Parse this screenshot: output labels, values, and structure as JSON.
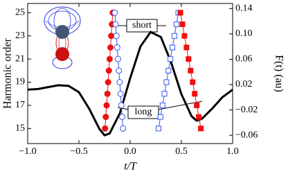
{
  "chart_data": {
    "type": "line",
    "xlabel": "t/T",
    "ylabel": "Harmonic order",
    "y2label": "F(t) (au)",
    "xlim": [
      -1.0,
      1.0
    ],
    "xticks": [
      {
        "value": -1.0,
        "label": "−1.0"
      },
      {
        "value": -0.5,
        "label": "−0.5"
      },
      {
        "value": 0.0,
        "label": "0.0"
      },
      0.5,
      {
        "value": 1.0,
        "label": "1.0"
      }
    ],
    "ylim": [
      13.7,
      25.8
    ],
    "yticks": [
      15,
      17,
      19,
      21,
      23,
      25
    ],
    "y2lim": [
      -0.073,
      0.148
    ],
    "y2ticks": [
      {
        "value": -0.06,
        "label": "−0.06"
      },
      {
        "value": -0.02,
        "label": "−0.02"
      },
      0.02,
      0.06,
      {
        "value": 0.1,
        "label": "0.10"
      },
      0.14
    ],
    "annotations": [
      "short",
      "long"
    ],
    "series": [
      {
        "color": "#000000",
        "marker": "none",
        "axis": "y2",
        "x": [
          -1.0,
          -0.9,
          -0.8,
          -0.7,
          -0.6,
          -0.5,
          -0.4,
          -0.3,
          -0.25,
          -0.2,
          -0.1,
          0.0,
          0.1,
          0.2,
          0.3,
          0.4,
          0.5,
          0.6,
          0.65,
          0.7,
          0.8,
          0.9,
          1.0
        ],
        "values": [
          0.012,
          0.013,
          0.016,
          0.019,
          0.018,
          0.008,
          -0.018,
          -0.05,
          -0.06,
          -0.057,
          -0.025,
          0.03,
          0.08,
          0.103,
          0.095,
          0.055,
          0.005,
          -0.03,
          -0.037,
          -0.034,
          -0.018,
          0.0,
          0.012
        ]
      },
      {
        "color": "#ee1111",
        "marker": "circle",
        "filled": true,
        "x": [
          -0.245,
          -0.238,
          -0.23,
          -0.222,
          -0.215,
          -0.208,
          -0.2,
          -0.192,
          -0.185,
          -0.178,
          -0.17
        ],
        "values": [
          15,
          16,
          17,
          18,
          19,
          20,
          21,
          22,
          23,
          24,
          25
        ]
      },
      {
        "color": "#3355ee",
        "marker": "circle",
        "filled": false,
        "x": [
          -0.07,
          -0.078,
          -0.086,
          -0.094,
          -0.102,
          -0.11,
          -0.118,
          -0.126,
          -0.134,
          -0.142,
          -0.15
        ],
        "values": [
          15,
          16,
          17,
          18,
          19,
          20,
          21,
          22,
          23,
          24,
          25
        ]
      },
      {
        "color": "#3355ee",
        "marker": "square",
        "filled": false,
        "x": [
          0.277,
          0.296,
          0.316,
          0.335,
          0.354,
          0.374,
          0.393,
          0.412,
          0.432,
          0.451,
          0.47
        ],
        "values": [
          15,
          16,
          17,
          18,
          19,
          20,
          21,
          22,
          23,
          24,
          25
        ]
      },
      {
        "color": "#ee1111",
        "marker": "square",
        "filled": true,
        "x": [
          0.69,
          0.67,
          0.65,
          0.63,
          0.61,
          0.59,
          0.57,
          0.55,
          0.53,
          0.51,
          0.49
        ],
        "values": [
          15,
          16,
          17,
          18,
          19,
          20,
          21,
          22,
          23,
          24,
          25
        ]
      }
    ]
  }
}
